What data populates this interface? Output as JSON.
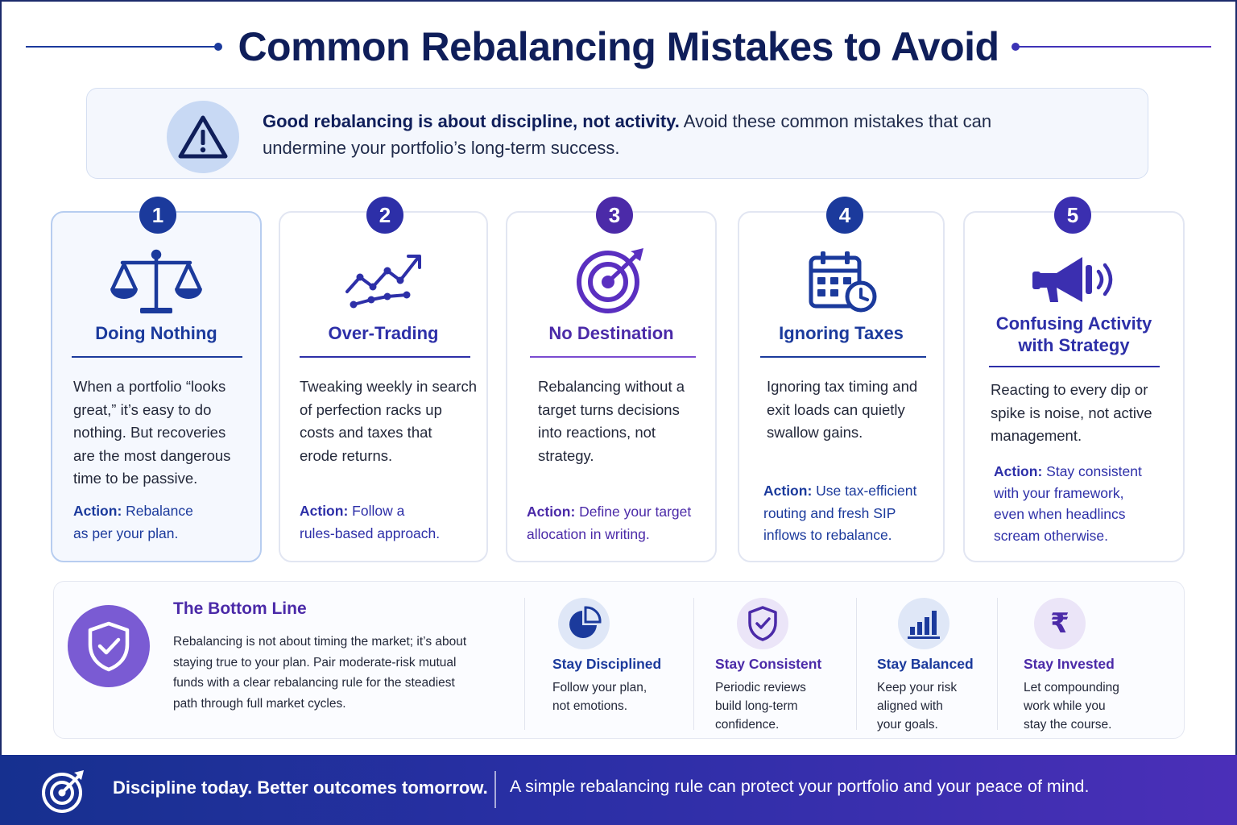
{
  "title": "Common Rebalancing Mistakes to Avoid",
  "intro": {
    "icon": "warning-icon",
    "bold": "Good rebalancing is about discipline, not activity.",
    "text": " Avoid these common mistakes that can undermine your portfolio’s long-term success."
  },
  "cards": [
    {
      "number": "1",
      "icon": "scales-icon",
      "title": "Doing Nothing",
      "body": [
        "When a portfolio “looks",
        " great,” it’s easy to do",
        "nothing. But recoveries",
        "are the most dangerous",
        "time to be passive."
      ],
      "action_label": "Action:",
      "action_text": [
        "Rebalance",
        "as per your plan."
      ],
      "accent": "#1b3a9c"
    },
    {
      "number": "2",
      "icon": "trend-chart-icon",
      "title": "Over-Trading",
      "body": [
        "Tweaking weekly in search",
        "of perfection racks up",
        "costs and taxes that",
        "erode returns."
      ],
      "action_label": "Action:",
      "action_text": [
        "Follow a",
        "rules-based approach."
      ],
      "accent": "#2d2fa8"
    },
    {
      "number": "3",
      "icon": "target-icon",
      "title": "No Destination",
      "body": [
        "Rebalancing without a",
        "target turns decisions",
        "into reactions, not",
        "strategy."
      ],
      "action_label": "Action:",
      "action_text": [
        "Define your target",
        "allocation in writing."
      ],
      "accent": "#4b2aa8"
    },
    {
      "number": "4",
      "icon": "calendar-clock-icon",
      "title": "Ignoring Taxes",
      "body": [
        "Ignoring tax timing and",
        "exit loads can quietly",
        "swallow gains."
      ],
      "action_label": "Action:",
      "action_text": [
        "Use tax-efficient",
        "routing and fresh SIP",
        "inflows to rebalance."
      ],
      "accent": "#1b3a9c"
    },
    {
      "number": "5",
      "icon": "megaphone-icon",
      "title": [
        "Confusing Activity",
        "with Strategy"
      ],
      "body": [
        "Reacting to every dip or",
        "spike is noise, not active",
        "management."
      ],
      "action_label": "Action:",
      "action_text": [
        "Stay consistent",
        "with your framework,",
        "even when headlincs",
        "scream otherwise."
      ],
      "accent": "#3b2fb0"
    }
  ],
  "bottom_line": {
    "icon": "shield-check-icon",
    "title": "The Bottom Line",
    "text": [
      "Rebalancing is not about timing the market; it’s about",
      "staying true to your plan. Pair moderate-risk mutual",
      "funds with a clear rebalancing rule for the steadiest",
      "path through full market cycles."
    ]
  },
  "pillars": [
    {
      "icon": "pie-chart-icon",
      "title": "Stay Disciplined",
      "text": [
        "Follow your plan,",
        "not emotions."
      ],
      "accent": "#1b3a9c"
    },
    {
      "icon": "shield-check-icon",
      "title": "Stay Consistent",
      "text": [
        "Periodic reviews",
        "build long-term",
        "confidence."
      ],
      "accent": "#4b2aa8"
    },
    {
      "icon": "bar-chart-icon",
      "title": "Stay Balanced",
      "text": [
        "Keep your risk",
        "aligned with",
        "your goals."
      ],
      "accent": "#1b3a9c"
    },
    {
      "icon": "rupee-icon",
      "title": "Stay Invested",
      "text": [
        "Let compounding",
        "work while you",
        "stay the course."
      ],
      "accent": "#4b2aa8",
      "glyph": "₹"
    }
  ],
  "footer": {
    "icon": "target-icon",
    "bold": "Discipline today. Better outcomes tomorrow.",
    "text": "A simple rebalancing rule can protect your portfolio and your peace of mind."
  }
}
